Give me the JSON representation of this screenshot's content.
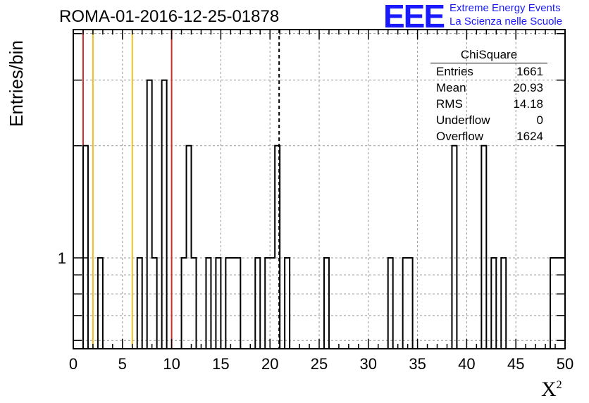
{
  "title": "ROMA-01-2016-12-25-01878",
  "logo": {
    "mark": "EEE",
    "line1": "Extreme Energy Events",
    "line2": "La Scienza nelle Scuole",
    "color": "#1a1aff"
  },
  "chart_data": {
    "type": "bar",
    "style": "step-histogram",
    "xlabel": "X",
    "xlabel_superscript": "2",
    "ylabel": "Entries/bin",
    "xlim": [
      0,
      50
    ],
    "ylim": [
      0.57,
      4.1
    ],
    "yscale": "log",
    "bin_width": 0.5,
    "x_ticks": [
      "0",
      "5",
      "10",
      "15",
      "20",
      "25",
      "30",
      "35",
      "40",
      "45",
      "50"
    ],
    "y_ticks": [
      "1"
    ],
    "grid": true,
    "bins": [
      {
        "x": 1.0,
        "y": 2
      },
      {
        "x": 2.5,
        "y": 1
      },
      {
        "x": 6.5,
        "y": 1
      },
      {
        "x": 7.5,
        "y": 3
      },
      {
        "x": 8.0,
        "y": 1
      },
      {
        "x": 9.0,
        "y": 3
      },
      {
        "x": 11.0,
        "y": 1
      },
      {
        "x": 11.5,
        "y": 2
      },
      {
        "x": 12.0,
        "y": 1
      },
      {
        "x": 13.5,
        "y": 1
      },
      {
        "x": 14.5,
        "y": 1
      },
      {
        "x": 15.5,
        "y": 1
      },
      {
        "x": 16.0,
        "y": 1
      },
      {
        "x": 16.5,
        "y": 1
      },
      {
        "x": 18.5,
        "y": 1
      },
      {
        "x": 19.5,
        "y": 1
      },
      {
        "x": 20.0,
        "y": 1
      },
      {
        "x": 20.5,
        "y": 2
      },
      {
        "x": 21.5,
        "y": 1
      },
      {
        "x": 25.5,
        "y": 1
      },
      {
        "x": 32.0,
        "y": 1
      },
      {
        "x": 33.5,
        "y": 1
      },
      {
        "x": 34.0,
        "y": 1
      },
      {
        "x": 38.5,
        "y": 2
      },
      {
        "x": 41.5,
        "y": 2
      },
      {
        "x": 42.5,
        "y": 1
      },
      {
        "x": 43.5,
        "y": 1
      },
      {
        "x": 48.5,
        "y": 1
      },
      {
        "x": 49.0,
        "y": 1
      },
      {
        "x": 49.5,
        "y": 1
      }
    ],
    "vlines": [
      {
        "x": 1.0,
        "color": "#d42a2a",
        "style": "solid"
      },
      {
        "x": 2.0,
        "color": "#f0c020",
        "style": "solid"
      },
      {
        "x": 6.0,
        "color": "#f0c020",
        "style": "solid"
      },
      {
        "x": 10.0,
        "color": "#d42a2a",
        "style": "solid"
      },
      {
        "x": 20.93,
        "color": "#000000",
        "style": "dashed"
      }
    ],
    "stats": {
      "title": "ChiSquare",
      "rows": [
        {
          "label": "Entries",
          "value": "1661"
        },
        {
          "label": "Mean",
          "value": "20.93"
        },
        {
          "label": "RMS",
          "value": "14.18"
        },
        {
          "label": "Underflow",
          "value": "0"
        },
        {
          "label": "Overflow",
          "value": "1624"
        }
      ]
    }
  }
}
